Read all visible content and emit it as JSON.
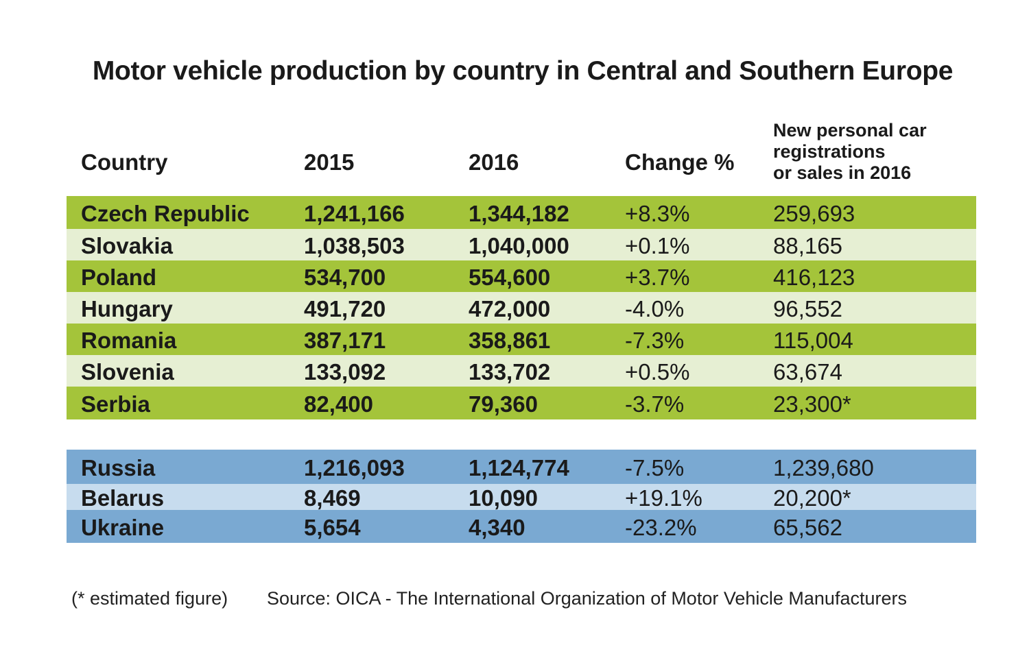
{
  "title": "Motor vehicle production by country in Central and Southern Europe",
  "headers": {
    "country": "Country",
    "y2015": "2015",
    "y2016": "2016",
    "change": "Change %",
    "sales_line1": "New personal car",
    "sales_line2": "registrations",
    "sales_line3": "or sales in 2016"
  },
  "colors": {
    "green_dark": "#a4c43a",
    "green_light": "#e6efd3",
    "blue_dark": "#7aa9d2",
    "blue_light": "#c7dcee"
  },
  "groups": [
    {
      "name": "central",
      "rows": [
        {
          "country": "Czech Republic",
          "y2015": "1,241,166",
          "y2016": "1,344,182",
          "change": "+8.3%",
          "sales": "259,693"
        },
        {
          "country": "Slovakia",
          "y2015": "1,038,503",
          "y2016": "1,040,000",
          "change": "+0.1%",
          "sales": "88,165"
        },
        {
          "country": "Poland",
          "y2015": "534,700",
          "y2016": "554,600",
          "change": "+3.7%",
          "sales": "416,123"
        },
        {
          "country": "Hungary",
          "y2015": "491,720",
          "y2016": "472,000",
          "change": "-4.0%",
          "sales": "96,552"
        },
        {
          "country": "Romania",
          "y2015": "387,171",
          "y2016": "358,861",
          "change": "-7.3%",
          "sales": "115,004"
        },
        {
          "country": "Slovenia",
          "y2015": "133,092",
          "y2016": "133,702",
          "change": "+0.5%",
          "sales": "63,674"
        },
        {
          "country": "Serbia",
          "y2015": "82,400",
          "y2016": "79,360",
          "change": "-3.7%",
          "sales": "23,300*"
        }
      ]
    },
    {
      "name": "eastern",
      "rows": [
        {
          "country": "Russia",
          "y2015": "1,216,093",
          "y2016": "1,124,774",
          "change": "-7.5%",
          "sales": "1,239,680"
        },
        {
          "country": "Belarus",
          "y2015": "8,469",
          "y2016": "10,090",
          "change": "+19.1%",
          "sales": "20,200*"
        },
        {
          "country": "Ukraine",
          "y2015": "5,654",
          "y2016": "4,340",
          "change": "-23.2%",
          "sales": "65,562"
        }
      ]
    }
  ],
  "footer": {
    "note": "(* estimated figure)",
    "source": "Source: OICA -  The International Organization of Motor Vehicle Manufacturers"
  }
}
